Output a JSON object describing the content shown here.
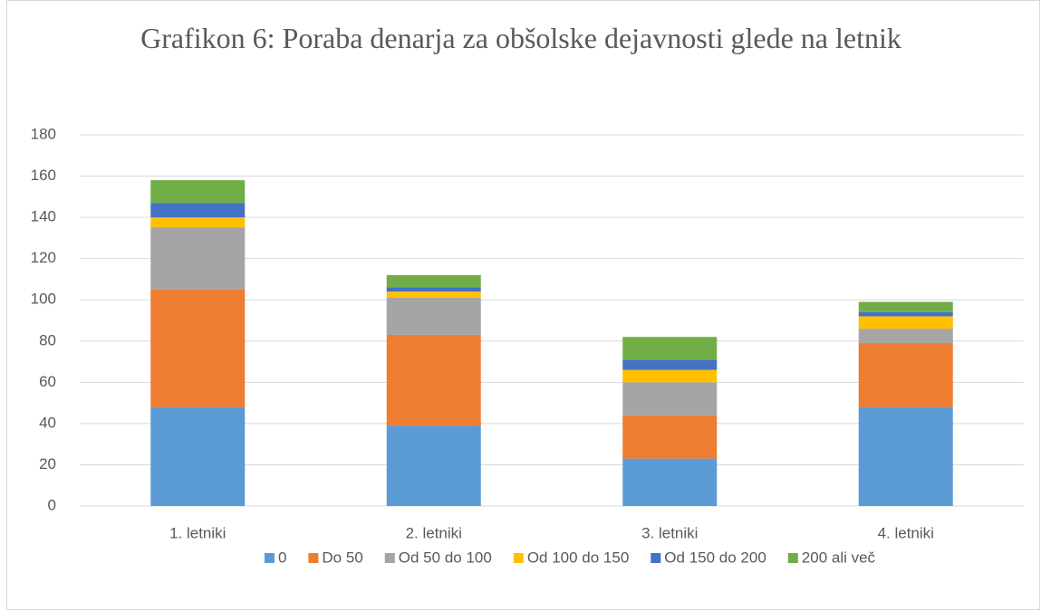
{
  "chart_data": {
    "type": "stacked_bar",
    "title": "Grafikon 6: Poraba denarja za obšolske dejavnosti glede na letnik",
    "categories": [
      "1. letniki",
      "2. letniki",
      "3. letniki",
      "4. letniki"
    ],
    "series": [
      {
        "name": "0",
        "color": "#5b9bd5",
        "values": [
          48,
          39,
          23,
          48
        ]
      },
      {
        "name": "Do 50",
        "color": "#ed7d31",
        "values": [
          57,
          44,
          21,
          31
        ]
      },
      {
        "name": "Od 50 do 100",
        "color": "#a5a5a5",
        "values": [
          30,
          18,
          16,
          7
        ]
      },
      {
        "name": "Od 100 do 150",
        "color": "#ffc000",
        "values": [
          5,
          3,
          6,
          6
        ]
      },
      {
        "name": "Od 150 do 200",
        "color": "#4472c4",
        "values": [
          7,
          2,
          5,
          2
        ]
      },
      {
        "name": "200 ali več",
        "color": "#70ad47",
        "values": [
          11,
          6,
          11,
          5
        ]
      }
    ],
    "ylim": [
      0,
      180
    ],
    "yticks": [
      0,
      20,
      40,
      60,
      80,
      100,
      120,
      140,
      160,
      180
    ],
    "grid": true,
    "legend": "bottom"
  }
}
